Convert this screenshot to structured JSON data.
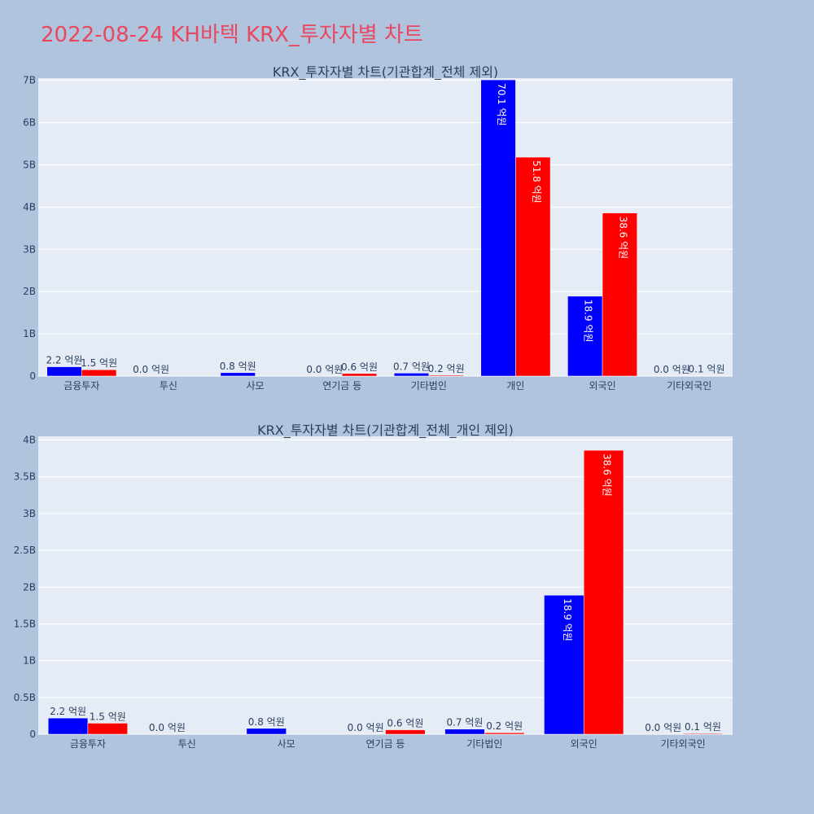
{
  "page_title": "2022-08-24 KH바텍 KRX_투자자별 차트",
  "colors": {
    "background": "#b0c4de",
    "plot_bg": "#e5ecf6",
    "buy": "#0000ff",
    "sell": "#ff0000",
    "title": "#e8475f",
    "text": "#2a3f5f"
  },
  "chart_data": [
    {
      "type": "bar",
      "title": "KRX_투자자별 차트(기관합계_전체 제외)",
      "categories": [
        "금융투자",
        "투신",
        "사모",
        "연기금 등",
        "기타법인",
        "개인",
        "외국인",
        "기타외국인"
      ],
      "series": [
        {
          "color": "#0000ff",
          "values": [
            220000000,
            0,
            80000000,
            0,
            70000000,
            7010000000,
            1890000000,
            0
          ],
          "labels": [
            "2.2 억원",
            "0.0 억원",
            "0.8 억원",
            "0.0 억원",
            "0.7 억원",
            "70.1 억원",
            "18.9 억원",
            "0.0 억원"
          ]
        },
        {
          "color": "#ff0000",
          "values": [
            150000000,
            0,
            0,
            60000000,
            20000000,
            5180000000,
            3860000000,
            10000000
          ],
          "labels": [
            "1.5 억원",
            "",
            "",
            "0.6 억원",
            "0.2 억원",
            "51.8 억원",
            "38.6 억원",
            "0.1 억원"
          ]
        }
      ],
      "ylim": [
        0,
        7050000000
      ],
      "yticks": [
        0,
        1000000000,
        2000000000,
        3000000000,
        4000000000,
        5000000000,
        6000000000,
        7000000000
      ],
      "ytick_labels": [
        "0",
        "1B",
        "2B",
        "3B",
        "4B",
        "5B",
        "6B",
        "7B"
      ],
      "grid": true
    },
    {
      "type": "bar",
      "title": "KRX_투자자별 차트(기관합계_전체_개인 제외)",
      "categories": [
        "금융투자",
        "투신",
        "사모",
        "연기금 등",
        "기타법인",
        "외국인",
        "기타외국인"
      ],
      "series": [
        {
          "color": "#0000ff",
          "values": [
            220000000,
            0,
            80000000,
            0,
            70000000,
            1890000000,
            0
          ],
          "labels": [
            "2.2 억원",
            "0.0 억원",
            "0.8 억원",
            "0.0 억원",
            "0.7 억원",
            "18.9 억원",
            "0.0 억원"
          ]
        },
        {
          "color": "#ff0000",
          "values": [
            150000000,
            0,
            0,
            60000000,
            20000000,
            3860000000,
            10000000
          ],
          "labels": [
            "1.5 억원",
            "",
            "",
            "0.6 억원",
            "0.2 억원",
            "38.6 억원",
            "0.1 억원"
          ]
        }
      ],
      "ylim": [
        0,
        4050000000
      ],
      "yticks": [
        0,
        500000000,
        1000000000,
        1500000000,
        2000000000,
        2500000000,
        3000000000,
        3500000000,
        4000000000
      ],
      "ytick_labels": [
        "0",
        "0.5B",
        "1B",
        "1.5B",
        "2B",
        "2.5B",
        "3B",
        "3.5B",
        "4B"
      ],
      "grid": true
    }
  ]
}
